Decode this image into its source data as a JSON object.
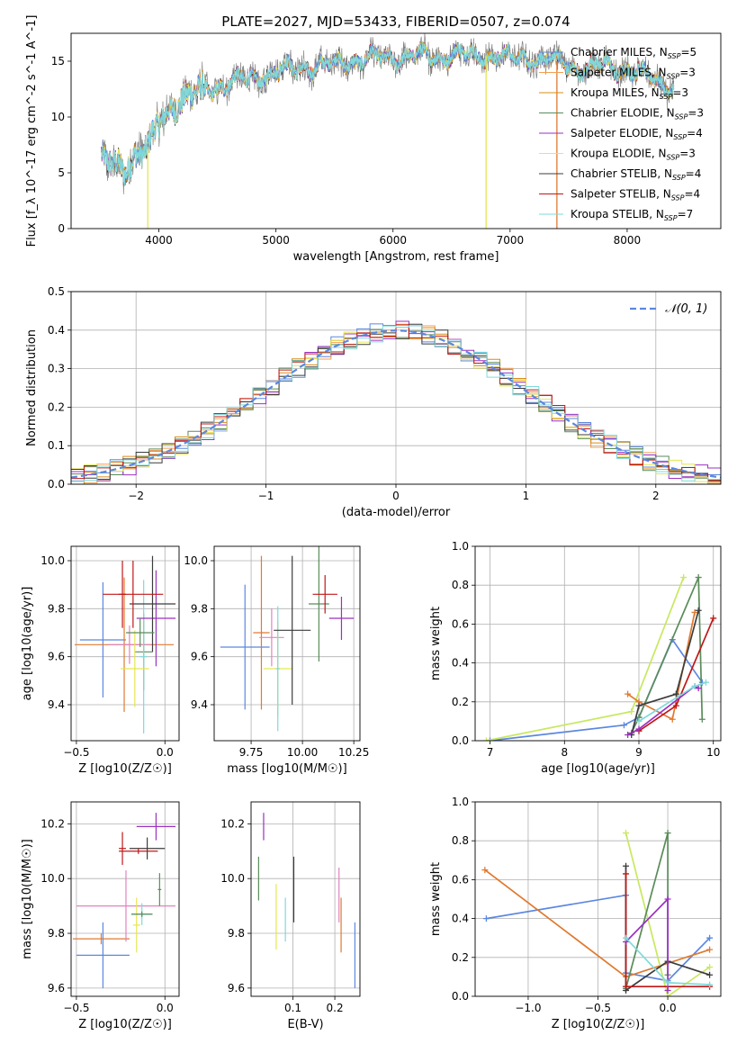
{
  "figure": {
    "colors": [
      "#5b87e0",
      "#f2a04e",
      "#d98c16",
      "#5a8c5a",
      "#9b30c0",
      "#e6e650",
      "#3c3c3c",
      "#c01818",
      "#7fdada"
    ],
    "extra_colors": {
      "red": "#c0202a",
      "gray": "#808080",
      "lime": "#c8e860",
      "orange": "#e07a30",
      "pink": "#e084c0",
      "cyan": "#7fdada"
    }
  },
  "chart_data": [
    {
      "id": "spectrum",
      "type": "line",
      "title": "PLATE=2027, MJD=53433, FIBERID=0507, z=0.074",
      "xlabel": "wavelength [Angstrom, rest frame]",
      "ylabel": "Flux [f_λ 10^-17 erg cm^-2 s^-1 A^-1]",
      "xlim": [
        3250,
        8800
      ],
      "ylim": [
        0,
        17.5
      ],
      "xticks": [
        4000,
        5000,
        6000,
        7000,
        8000
      ],
      "yticks": [
        0,
        5,
        10,
        15
      ],
      "grid": false,
      "legend": "top-right",
      "series": [
        {
          "name": "Chabrier MILES, N_SSP=5"
        },
        {
          "name": "Salpeter MILES, N_SSP=3"
        },
        {
          "name": "Kroupa MILES, N_SSP=3"
        },
        {
          "name": "Chabrier ELODIE, N_SSP=3"
        },
        {
          "name": "Salpeter ELODIE, N_SSP=4"
        },
        {
          "name": "Kroupa ELODIE, N_SSP=3"
        },
        {
          "name": "Chabrier STELIB, N_SSP=4"
        },
        {
          "name": "Salpeter STELIB, N_SSP=4"
        },
        {
          "name": "Kroupa STELIB, N_SSP=7"
        }
      ],
      "continuum": {
        "x": [
          3500,
          3600,
          3700,
          3800,
          3900,
          4000,
          4100,
          4200,
          4400,
          4600,
          4800,
          5000,
          5200,
          5400,
          5600,
          5800,
          6000,
          6200,
          6400,
          6600,
          6800,
          7000,
          7200,
          7400,
          7600,
          7800,
          8000,
          8200,
          8400
        ],
        "y": [
          6.0,
          5.8,
          5.5,
          6.5,
          7.0,
          9.5,
          11.0,
          11.5,
          12.5,
          13.0,
          13.5,
          14.0,
          14.5,
          14.5,
          15.0,
          15.2,
          15.3,
          15.4,
          15.5,
          15.6,
          15.5,
          15.3,
          15.2,
          15.0,
          14.3,
          14.6,
          14.2,
          13.6,
          12.5
        ]
      }
    },
    {
      "id": "residuals",
      "type": "histogram",
      "xlabel": "(data-model)/error",
      "ylabel": "Normed distribution",
      "xlim": [
        -2.5,
        2.5
      ],
      "ylim": [
        0,
        0.5
      ],
      "xticks": [
        -2,
        -1,
        0,
        1,
        2
      ],
      "yticks": [
        0.0,
        0.1,
        0.2,
        0.3,
        0.4,
        0.5
      ],
      "grid": true,
      "legend": "top-right",
      "reference": {
        "name": "𝒩(0, 1)",
        "mean": 0,
        "sigma": 1
      }
    },
    {
      "id": "age_vs_Z",
      "type": "errorbar",
      "xlabel": "Z [log10(Z/Z☉)]",
      "ylabel": "age  [log10(age/yr)]",
      "xlim": [
        -0.53,
        0.08
      ],
      "ylim": [
        9.25,
        10.06
      ],
      "xticks": [
        -0.5,
        0.0
      ],
      "yticks": [
        9.4,
        9.6,
        9.8,
        10.0
      ],
      "points": [
        {
          "x": -0.35,
          "y": 9.67,
          "xerr": 0.13,
          "yerr": 0.24,
          "c": "#5b87e0"
        },
        {
          "x": -0.23,
          "y": 9.65,
          "xerr": 0.28,
          "yerr": 0.28,
          "c": "#e07a30"
        },
        {
          "x": -0.2,
          "y": 9.65,
          "xerr": 0.12,
          "yerr": 0.08,
          "c": "#e084c0"
        },
        {
          "x": -0.12,
          "y": 9.62,
          "xerr": 0.05,
          "yerr": 0.16,
          "c": "#5a8c5a"
        },
        {
          "x": -0.12,
          "y": 9.6,
          "xerr": 0.02,
          "yerr": 0.32,
          "c": "#7fdada"
        },
        {
          "x": -0.17,
          "y": 9.55,
          "xerr": 0.08,
          "yerr": 0.16,
          "c": "#e6e650"
        },
        {
          "x": -0.05,
          "y": 9.76,
          "xerr": 0.11,
          "yerr": 0.2,
          "c": "#9b30c0"
        },
        {
          "x": -0.07,
          "y": 9.82,
          "xerr": 0.13,
          "yerr": 0.2,
          "c": "#3c3c3c"
        },
        {
          "x": -0.18,
          "y": 9.86,
          "xerr": 0.17,
          "yerr": 0.14,
          "c": "#c01818"
        },
        {
          "x": -0.24,
          "y": 9.86,
          "xerr": 0.02,
          "yerr": 0.14,
          "c": "#c01818"
        },
        {
          "x": -0.14,
          "y": 9.7,
          "xerr": 0.08,
          "yerr": 0.06,
          "c": "#5a8c5a"
        }
      ]
    },
    {
      "id": "age_vs_mass",
      "type": "errorbar",
      "xlabel": "mass [log10(M/M☉)]",
      "ylabel": "",
      "xlim": [
        9.57,
        10.28
      ],
      "ylim": [
        9.25,
        10.06
      ],
      "xticks": [
        9.75,
        10.0,
        10.25
      ],
      "yticks": [
        9.4,
        9.6,
        9.8,
        10.0
      ],
      "points": [
        {
          "x": 9.72,
          "y": 9.64,
          "xerr": 0.12,
          "yerr": 0.26,
          "c": "#5b87e0"
        },
        {
          "x": 9.8,
          "y": 9.7,
          "xerr": 0.04,
          "yerr": 0.32,
          "c": "#e07a30"
        },
        {
          "x": 9.85,
          "y": 9.68,
          "xerr": 0.06,
          "yerr": 0.12,
          "c": "#e084c0"
        },
        {
          "x": 9.88,
          "y": 9.55,
          "xerr": 0.07,
          "yerr": 0.2,
          "c": "#e6e650"
        },
        {
          "x": 9.88,
          "y": 9.55,
          "xerr": 0.01,
          "yerr": 0.26,
          "c": "#7fdada"
        },
        {
          "x": 9.95,
          "y": 9.71,
          "xerr": 0.09,
          "yerr": 0.31,
          "c": "#3c3c3c"
        },
        {
          "x": 10.08,
          "y": 9.82,
          "xerr": 0.05,
          "yerr": 0.24,
          "c": "#5a8c5a"
        },
        {
          "x": 10.19,
          "y": 9.76,
          "xerr": 0.06,
          "yerr": 0.09,
          "c": "#9b30c0"
        },
        {
          "x": 10.11,
          "y": 9.86,
          "xerr": 0.06,
          "yerr": 0.08,
          "c": "#c01818"
        }
      ]
    },
    {
      "id": "massweight_vs_age",
      "type": "line",
      "xlabel": "age  [log10(age/yr)]",
      "ylabel": "mass weight",
      "xlim": [
        6.8,
        10.1
      ],
      "ylim": [
        0,
        1.0
      ],
      "xticks": [
        7,
        8,
        9,
        10
      ],
      "yticks": [
        0.0,
        0.2,
        0.4,
        0.6,
        0.8,
        1.0
      ],
      "series": [
        {
          "c": "#5b87e0",
          "x": [
            7.0,
            8.8,
            9.0,
            9.45,
            9.85
          ],
          "y": [
            0.0,
            0.08,
            0.12,
            0.52,
            0.3
          ]
        },
        {
          "c": "#c8e860",
          "x": [
            6.95,
            8.9,
            9.6
          ],
          "y": [
            0.0,
            0.15,
            0.84
          ]
        },
        {
          "c": "#5a8c5a",
          "x": [
            8.9,
            9.0,
            9.8,
            9.85
          ],
          "y": [
            0.04,
            0.12,
            0.84,
            0.11
          ]
        },
        {
          "c": "#e07a30",
          "x": [
            8.85,
            9.0,
            9.45,
            9.75
          ],
          "y": [
            0.24,
            0.2,
            0.11,
            0.66
          ]
        },
        {
          "c": "#3c3c3c",
          "x": [
            8.9,
            9.0,
            9.5,
            9.8
          ],
          "y": [
            0.03,
            0.18,
            0.24,
            0.67
          ]
        },
        {
          "c": "#c01818",
          "x": [
            9.0,
            9.5,
            10.0
          ],
          "y": [
            0.05,
            0.18,
            0.63
          ]
        },
        {
          "c": "#9b30c0",
          "x": [
            8.85,
            9.0,
            9.75,
            9.8
          ],
          "y": [
            0.03,
            0.06,
            0.28,
            0.27
          ]
        },
        {
          "c": "#7fdada",
          "x": [
            9.0,
            9.75,
            9.9
          ],
          "y": [
            0.1,
            0.28,
            0.3
          ]
        }
      ]
    },
    {
      "id": "mass_vs_Z",
      "type": "errorbar",
      "xlabel": "Z [log10(Z/Z☉)]",
      "ylabel": "mass [log10(M/M☉)]",
      "xlim": [
        -0.53,
        0.08
      ],
      "ylim": [
        9.57,
        10.28
      ],
      "xticks": [
        -0.5,
        0.0
      ],
      "yticks": [
        9.6,
        9.8,
        10.0,
        10.2
      ],
      "points": [
        {
          "x": -0.35,
          "y": 9.72,
          "xerr": 0.15,
          "yerr": 0.12,
          "c": "#5b87e0"
        },
        {
          "x": -0.36,
          "y": 9.78,
          "xerr": 0.16,
          "yerr": 0.02,
          "c": "#e07a30"
        },
        {
          "x": -0.22,
          "y": 9.9,
          "xerr": 0.28,
          "yerr": 0.13,
          "c": "#e084c0"
        },
        {
          "x": -0.16,
          "y": 9.83,
          "xerr": 0.02,
          "yerr": 0.1,
          "c": "#e6e650"
        },
        {
          "x": -0.13,
          "y": 9.87,
          "xerr": 0.06,
          "yerr": 0.04,
          "c": "#7fdada"
        },
        {
          "x": -0.13,
          "y": 9.87,
          "xerr": 0.06,
          "yerr": 0.01,
          "c": "#5a8c5a"
        },
        {
          "x": -0.03,
          "y": 9.96,
          "xerr": 0.01,
          "yerr": 0.06,
          "c": "#5a8c5a"
        },
        {
          "x": -0.1,
          "y": 10.11,
          "xerr": 0.1,
          "yerr": 0.04,
          "c": "#3c3c3c"
        },
        {
          "x": -0.05,
          "y": 10.19,
          "xerr": 0.11,
          "yerr": 0.05,
          "c": "#9b30c0"
        },
        {
          "x": -0.24,
          "y": 10.11,
          "xerr": 0.02,
          "yerr": 0.06,
          "c": "#c01818"
        },
        {
          "x": -0.15,
          "y": 10.1,
          "xerr": 0.11,
          "yerr": 0.01,
          "c": "#c01818"
        }
      ]
    },
    {
      "id": "mass_vs_ebv",
      "type": "errorbar",
      "xlabel": "E(B-V)",
      "ylabel": "",
      "xlim": [
        0.0,
        0.26
      ],
      "ylim": [
        9.57,
        10.28
      ],
      "xticks": [
        0.1,
        0.2
      ],
      "yticks": [
        9.6,
        9.8,
        10.0,
        10.2
      ],
      "points": [
        {
          "x": 0.018,
          "y": 10.0,
          "xerr": 0,
          "yerr": 0.08,
          "c": "#5a8c5a"
        },
        {
          "x": 0.03,
          "y": 10.19,
          "xerr": 0,
          "yerr": 0.05,
          "c": "#9b30c0"
        },
        {
          "x": 0.06,
          "y": 9.86,
          "xerr": 0,
          "yerr": 0.12,
          "c": "#e6e650"
        },
        {
          "x": 0.082,
          "y": 9.85,
          "xerr": 0,
          "yerr": 0.08,
          "c": "#7fdada"
        },
        {
          "x": 0.102,
          "y": 9.96,
          "xerr": 0,
          "yerr": 0.12,
          "c": "#3c3c3c"
        },
        {
          "x": 0.21,
          "y": 9.94,
          "xerr": 0,
          "yerr": 0.1,
          "c": "#e084c0"
        },
        {
          "x": 0.215,
          "y": 9.83,
          "xerr": 0,
          "yerr": 0.1,
          "c": "#e07a30"
        },
        {
          "x": 0.248,
          "y": 9.72,
          "xerr": 0,
          "yerr": 0.12,
          "c": "#5b87e0"
        }
      ]
    },
    {
      "id": "massweight_vs_Z",
      "type": "line",
      "xlabel": "Z [log10(Z/Z☉)]",
      "ylabel": "mass weight",
      "xlim": [
        -1.38,
        0.38
      ],
      "ylim": [
        0,
        1.0
      ],
      "xticks": [
        -1.0,
        -0.5,
        0.0
      ],
      "yticks": [
        0.0,
        0.2,
        0.4,
        0.6,
        0.8,
        1.0
      ],
      "series": [
        {
          "c": "#5b87e0",
          "x": [
            -1.3,
            -0.3,
            -0.3,
            0.0,
            0.3
          ],
          "y": [
            0.4,
            0.52,
            0.12,
            0.08,
            0.3
          ]
        },
        {
          "c": "#e07a30",
          "x": [
            -1.31,
            -0.3,
            0.3
          ],
          "y": [
            0.65,
            0.1,
            0.24
          ]
        },
        {
          "c": "#c8e860",
          "x": [
            -0.3,
            0.0,
            0.3
          ],
          "y": [
            0.84,
            0.0,
            0.15
          ]
        },
        {
          "c": "#5a8c5a",
          "x": [
            -0.3,
            0.0,
            0.0
          ],
          "y": [
            0.04,
            0.84,
            0.11
          ]
        },
        {
          "c": "#3c3c3c",
          "x": [
            -0.3,
            -0.3,
            0.0,
            0.3
          ],
          "y": [
            0.67,
            0.03,
            0.18,
            0.11
          ]
        },
        {
          "c": "#c01818",
          "x": [
            -0.3,
            -0.3,
            0.3
          ],
          "y": [
            0.63,
            0.05,
            0.05
          ]
        },
        {
          "c": "#9b30c0",
          "x": [
            -0.3,
            0.0,
            0.0
          ],
          "y": [
            0.28,
            0.5,
            0.03
          ]
        },
        {
          "c": "#7fdada",
          "x": [
            -0.3,
            0.0,
            0.3
          ],
          "y": [
            0.3,
            0.07,
            0.06
          ]
        }
      ]
    }
  ]
}
